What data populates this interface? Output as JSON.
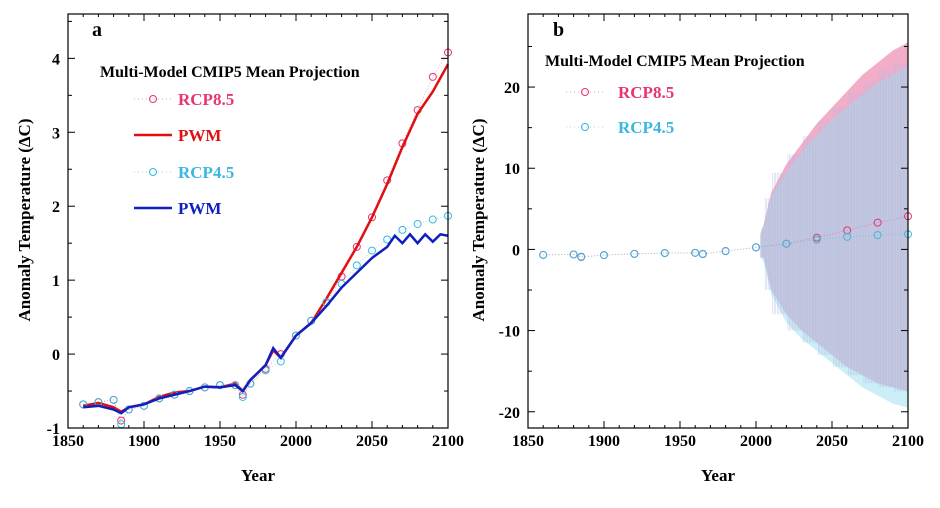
{
  "chart_data": [
    {
      "type": "line",
      "panel_label": "a",
      "title": "Multi-Model CMIP5 Mean Projection",
      "xlabel": "Year",
      "ylabel": "Anomaly Temperature (ΔC)",
      "xlim": [
        1850,
        2100
      ],
      "ylim": [
        -1,
        4.6
      ],
      "xticks": [
        1850,
        1900,
        1950,
        2000,
        2050,
        2100
      ],
      "yticks": [
        -1,
        0,
        1,
        2,
        3,
        4
      ],
      "grid": false,
      "legend_position": "top-left",
      "series": [
        {
          "name": "RCP8.5",
          "style": "open-circles",
          "color": "#e8356e",
          "x": [
            1860,
            1870,
            1880,
            1885,
            1890,
            1900,
            1910,
            1920,
            1930,
            1940,
            1950,
            1960,
            1965,
            1970,
            1980,
            1990,
            2000,
            2010,
            2020,
            2030,
            2040,
            2050,
            2060,
            2070,
            2080,
            2090,
            2100
          ],
          "y": [
            -0.68,
            -0.65,
            -0.62,
            -0.9,
            -0.75,
            -0.7,
            -0.6,
            -0.55,
            -0.5,
            -0.45,
            -0.42,
            -0.42,
            -0.55,
            -0.4,
            -0.2,
            0.0,
            0.25,
            0.45,
            0.7,
            1.05,
            1.45,
            1.85,
            2.35,
            2.85,
            3.3,
            3.75,
            4.08
          ]
        },
        {
          "name": "PWM",
          "style": "line",
          "color": "#e01010",
          "x": [
            1860,
            1870,
            1880,
            1885,
            1890,
            1900,
            1910,
            1920,
            1930,
            1940,
            1950,
            1960,
            1965,
            1970,
            1980,
            1985,
            1990,
            2000,
            2010,
            2020,
            2030,
            2040,
            2050,
            2060,
            2070,
            2080,
            2090,
            2100
          ],
          "y": [
            -0.7,
            -0.66,
            -0.72,
            -0.78,
            -0.72,
            -0.68,
            -0.58,
            -0.52,
            -0.5,
            -0.44,
            -0.45,
            -0.4,
            -0.5,
            -0.35,
            -0.15,
            0.05,
            -0.05,
            0.25,
            0.42,
            0.75,
            1.1,
            1.45,
            1.85,
            2.3,
            2.8,
            3.25,
            3.55,
            3.92
          ]
        },
        {
          "name": "RCP4.5",
          "style": "open-circles",
          "color": "#3ab8e0",
          "x": [
            1860,
            1870,
            1880,
            1885,
            1890,
            1900,
            1910,
            1920,
            1930,
            1940,
            1950,
            1960,
            1965,
            1970,
            1980,
            1990,
            2000,
            2010,
            2020,
            2030,
            2040,
            2050,
            2060,
            2070,
            2080,
            2090,
            2100
          ],
          "y": [
            -0.68,
            -0.65,
            -0.62,
            -0.95,
            -0.75,
            -0.7,
            -0.6,
            -0.55,
            -0.5,
            -0.45,
            -0.42,
            -0.42,
            -0.58,
            -0.4,
            -0.22,
            -0.1,
            0.25,
            0.45,
            0.7,
            0.95,
            1.2,
            1.4,
            1.55,
            1.68,
            1.76,
            1.82,
            1.87
          ]
        },
        {
          "name": "PWM",
          "style": "line",
          "color": "#1020c0",
          "x": [
            1860,
            1870,
            1880,
            1885,
            1890,
            1900,
            1910,
            1920,
            1930,
            1940,
            1950,
            1960,
            1965,
            1970,
            1980,
            1985,
            1990,
            2000,
            2010,
            2020,
            2030,
            2040,
            2050,
            2060,
            2065,
            2070,
            2075,
            2080,
            2085,
            2090,
            2095,
            2100
          ],
          "y": [
            -0.72,
            -0.7,
            -0.75,
            -0.8,
            -0.72,
            -0.68,
            -0.6,
            -0.55,
            -0.5,
            -0.44,
            -0.45,
            -0.42,
            -0.5,
            -0.35,
            -0.15,
            0.08,
            -0.05,
            0.25,
            0.42,
            0.65,
            0.9,
            1.1,
            1.3,
            1.45,
            1.6,
            1.5,
            1.62,
            1.5,
            1.62,
            1.52,
            1.62,
            1.6
          ]
        }
      ]
    },
    {
      "type": "line",
      "panel_label": "b",
      "title": "Multi-Model CMIP5 Mean Projection",
      "xlabel": "Year",
      "ylabel": "Anomaly Temperature (ΔC)",
      "xlim": [
        1850,
        2100
      ],
      "ylim": [
        -22,
        29
      ],
      "xticks": [
        1850,
        1900,
        1950,
        2000,
        2050,
        2100
      ],
      "yticks": [
        -20,
        -10,
        0,
        10,
        20
      ],
      "grid": false,
      "legend_position": "top-left",
      "bands": [
        {
          "series": "RCP8.5",
          "color": "#f0a0c0",
          "x": [
            2003,
            2005,
            2010,
            2020,
            2030,
            2040,
            2050,
            2060,
            2070,
            2080,
            2090,
            2100
          ],
          "upper": [
            2,
            3,
            7,
            10.5,
            13,
            15.5,
            17.5,
            19.5,
            21.5,
            23,
            24.5,
            25.5
          ],
          "lower": [
            -1,
            -1,
            -5,
            -8,
            -10,
            -11.5,
            -13,
            -14.5,
            -15.5,
            -16.5,
            -17,
            -17.5
          ]
        },
        {
          "series": "RCP4.5",
          "color": "#a0e0f0",
          "x": [
            2003,
            2005,
            2010,
            2020,
            2030,
            2040,
            2050,
            2060,
            2070,
            2080,
            2090,
            2100
          ],
          "upper": [
            2,
            3,
            6.5,
            9.5,
            12,
            14,
            16,
            17.5,
            19,
            20.5,
            21.5,
            22.5
          ],
          "lower": [
            -1,
            -1.5,
            -5.5,
            -9,
            -11,
            -12.5,
            -14,
            -15.5,
            -17,
            -18,
            -19,
            -19.5
          ]
        }
      ],
      "series": [
        {
          "name": "RCP8.5",
          "style": "open-circles",
          "color": "#e8356e",
          "x": [
            1860,
            1880,
            1885,
            1900,
            1920,
            1940,
            1960,
            1965,
            1980,
            2000,
            2020,
            2040,
            2060,
            2080,
            2100
          ],
          "y": [
            -0.68,
            -0.62,
            -0.9,
            -0.7,
            -0.55,
            -0.45,
            -0.42,
            -0.55,
            -0.2,
            0.25,
            0.7,
            1.45,
            2.35,
            3.3,
            4.08
          ]
        },
        {
          "name": "RCP4.5",
          "style": "open-circles",
          "color": "#3ab8e0",
          "x": [
            1860,
            1880,
            1885,
            1900,
            1920,
            1940,
            1960,
            1965,
            1980,
            2000,
            2020,
            2040,
            2060,
            2080,
            2100
          ],
          "y": [
            -0.68,
            -0.62,
            -0.95,
            -0.7,
            -0.55,
            -0.45,
            -0.42,
            -0.58,
            -0.22,
            0.25,
            0.7,
            1.2,
            1.55,
            1.76,
            1.87
          ]
        }
      ]
    }
  ]
}
